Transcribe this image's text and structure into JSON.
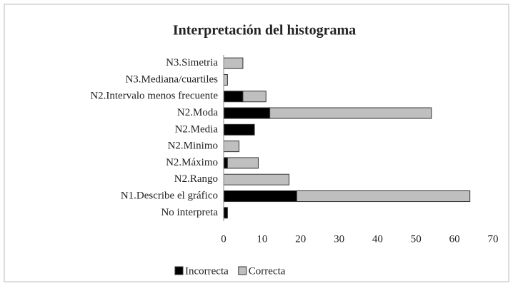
{
  "chart_data": {
    "type": "stacked_barh",
    "title": "Interpretación del histograma",
    "categories": [
      "N3.Simetria",
      "N3.Mediana/cuartiles",
      "N2.Intervalo menos frecuente",
      "N2.Moda",
      "N2.Media",
      "N2.Minimo",
      "N2.Máximo",
      "N2.Rango",
      "N1.Describe el gráfico",
      "No interpreta"
    ],
    "series": [
      {
        "name": "Incorrecta",
        "color": "#000000",
        "values": [
          0,
          0,
          5,
          12,
          8,
          0,
          1,
          0,
          19,
          1
        ]
      },
      {
        "name": "Correcta",
        "color": "#bfbfbf",
        "values": [
          5,
          1,
          6,
          42,
          0,
          4,
          8,
          17,
          45,
          0
        ]
      }
    ],
    "xlim": [
      0,
      70
    ],
    "xticks": [
      0,
      10,
      20,
      30,
      40,
      50,
      60,
      70
    ],
    "grid": false,
    "legend": "bottom"
  }
}
